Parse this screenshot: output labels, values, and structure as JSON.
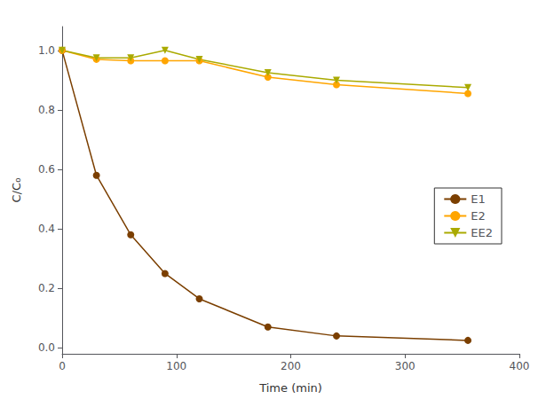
{
  "chart_data": {
    "type": "line",
    "xlabel": "Time (min)",
    "ylabel": "C/C₀",
    "x": [
      0,
      30,
      60,
      90,
      120,
      180,
      240,
      355
    ],
    "series": [
      {
        "name": "E1",
        "color": "#7B3F00",
        "marker": "circle",
        "values": [
          1.0,
          0.58,
          0.38,
          0.25,
          0.165,
          0.07,
          0.04,
          0.025
        ]
      },
      {
        "name": "E2",
        "color": "#FFA500",
        "marker": "circle",
        "values": [
          1.0,
          0.97,
          0.965,
          0.965,
          0.965,
          0.91,
          0.885,
          0.855
        ]
      },
      {
        "name": "EE2",
        "color": "#AAAA00",
        "marker": "triangle_down",
        "values": [
          1.0,
          0.975,
          0.975,
          1.0,
          0.97,
          0.925,
          0.9,
          0.875
        ]
      }
    ],
    "xlim": [
      0,
      400
    ],
    "xticks": [
      0,
      100,
      200,
      300,
      400
    ],
    "ylim": [
      -0.02,
      1.08
    ],
    "yticks": [
      {
        "value": 0.0,
        "label": "0.0"
      },
      0.2,
      0.4,
      0.6,
      0.8,
      {
        "value": 1.0,
        "label": "1.0"
      }
    ],
    "grid": false,
    "legend": "right"
  }
}
